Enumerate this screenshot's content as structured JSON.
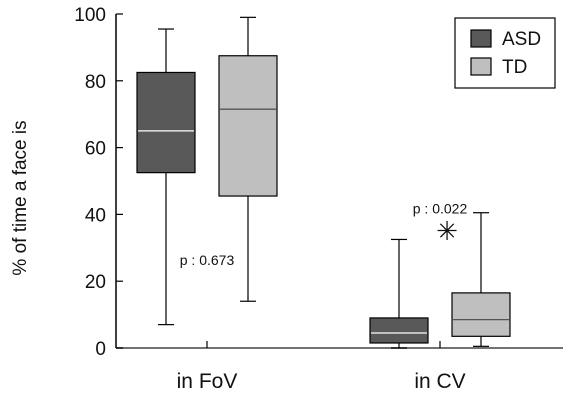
{
  "chart_data": {
    "type": "box",
    "ylabel": "% of time a face is",
    "xlabel": "",
    "ylim": [
      0,
      100
    ],
    "yticks": [
      0,
      20,
      40,
      60,
      80,
      100
    ],
    "categories": [
      "in FoV",
      "in CV"
    ],
    "series": [
      {
        "name": "ASD",
        "color": "#595959",
        "median_color": "#ffffff",
        "boxes": [
          {
            "min": 7,
            "q1": 52.5,
            "median": 65,
            "q3": 82.5,
            "max": 95.5
          },
          {
            "min": 0,
            "q1": 1.5,
            "median": 4.5,
            "q3": 9,
            "max": 32.5
          }
        ]
      },
      {
        "name": "TD",
        "color": "#bfbfbf",
        "median_color": "#555555",
        "boxes": [
          {
            "min": 14,
            "q1": 45.5,
            "median": 71.5,
            "q3": 87.5,
            "max": 99
          },
          {
            "min": 0.5,
            "q1": 3.5,
            "median": 8.5,
            "q3": 16.5,
            "max": 40.5
          }
        ]
      }
    ],
    "annotations": [
      {
        "text": "p : 0.673",
        "category": "in FoV",
        "y": 26
      },
      {
        "text": "p : 0.022",
        "category": "in CV",
        "y": 41.5
      },
      {
        "text": "✳",
        "category": "in CV",
        "y": 35,
        "kind": "significance-marker"
      }
    ],
    "legend_position": "top-right",
    "grid": false
  }
}
